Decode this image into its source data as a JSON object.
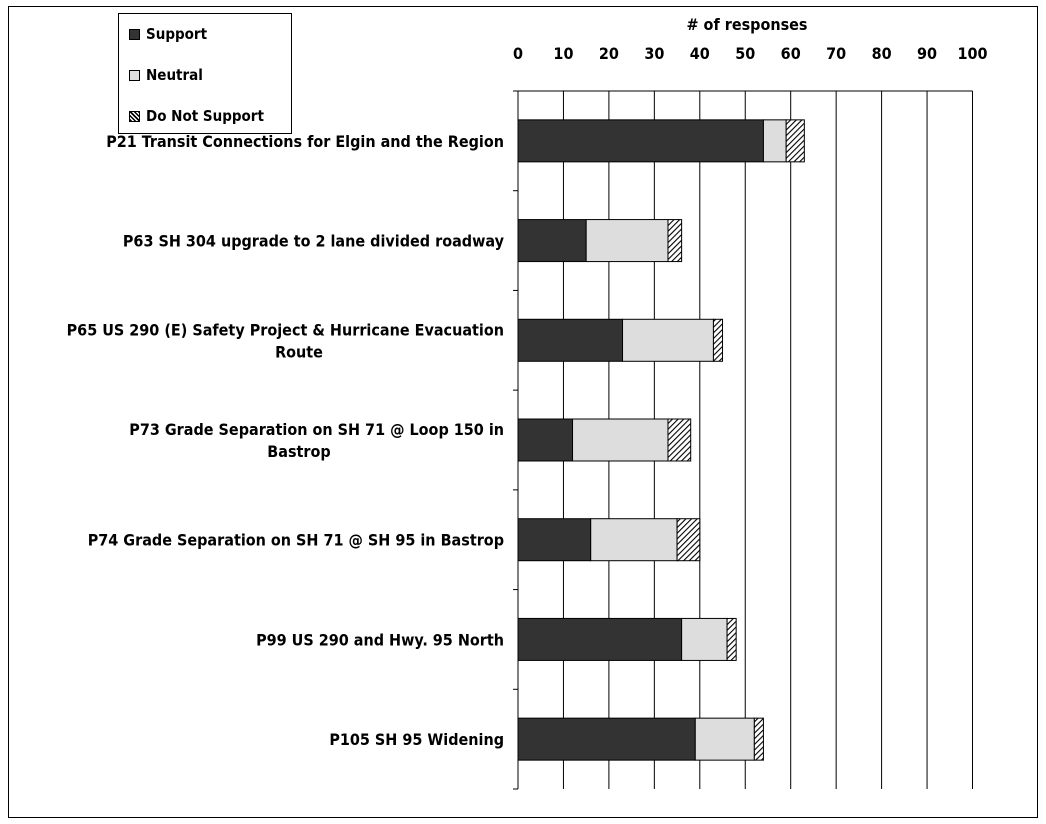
{
  "chart_data": {
    "type": "bar",
    "orientation": "horizontal",
    "stacked": true,
    "title": "",
    "xlabel": "# of responses",
    "ylabel": "",
    "xlim": [
      0,
      100
    ],
    "x_ticks": [
      "0",
      "10",
      "20",
      "30",
      "40",
      "50",
      "60",
      "70",
      "80",
      "90",
      "100"
    ],
    "x_axis_position": "top",
    "grid": "vertical",
    "legend_position": "top-left",
    "categories": [
      [
        "P21 Transit Connections for Elgin and the Region"
      ],
      [
        "P63 SH 304 upgrade to 2 lane divided roadway"
      ],
      [
        "P65 US 290 (E) Safety Project & Hurricane Evacuation",
        "Route"
      ],
      [
        "P73 Grade Separation on SH 71 @ Loop 150 in",
        "Bastrop"
      ],
      [
        "P74 Grade Separation on SH 71 @ SH 95 in Bastrop"
      ],
      [
        "P99 US 290 and Hwy. 95 North"
      ],
      [
        "P105 SH 95 Widening"
      ]
    ],
    "series": [
      {
        "name": "Support",
        "color": "#333333",
        "pattern": "solid",
        "values": [
          54,
          15,
          23,
          12,
          16,
          36,
          39
        ]
      },
      {
        "name": "Neutral",
        "color": "#dddddd",
        "pattern": "solid",
        "values": [
          5,
          18,
          20,
          21,
          19,
          10,
          13
        ]
      },
      {
        "name": "Do Not Support",
        "color": "#999999",
        "pattern": "hatch",
        "values": [
          4,
          3,
          2,
          5,
          5,
          2,
          2
        ]
      }
    ]
  }
}
